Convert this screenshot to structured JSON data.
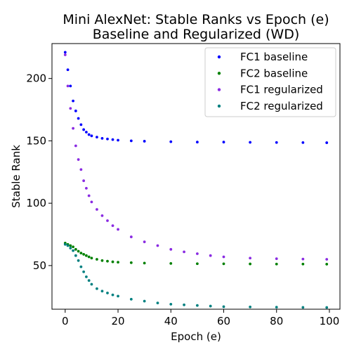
{
  "chart_data": {
    "type": "scatter",
    "title": "Mini AlexNet: Stable Ranks vs Epoch (e)",
    "subtitle": "Baseline and Regularized (WD)",
    "xlabel": "Epoch (e)",
    "ylabel": "Stable Rank",
    "xlim": [
      -5,
      104
    ],
    "ylim": [
      15,
      228
    ],
    "xticks": [
      0,
      20,
      40,
      60,
      80,
      100
    ],
    "yticks": [
      50,
      100,
      150,
      200
    ],
    "grid": false,
    "legend_position": "top-right",
    "series": [
      {
        "name": "FC1 baseline",
        "color": "#0000ff",
        "x": [
          0,
          1,
          2,
          3,
          4,
          5,
          6,
          7,
          8,
          9,
          10,
          12,
          14,
          16,
          18,
          20,
          25,
          30,
          40,
          50,
          60,
          70,
          80,
          90,
          99
        ],
        "y": [
          221,
          207,
          194,
          182,
          174,
          168,
          163,
          159,
          157,
          155,
          154,
          153,
          152,
          151.5,
          151,
          150.5,
          150,
          149.7,
          149.3,
          149,
          149,
          148.8,
          148.7,
          148.6,
          148.5
        ]
      },
      {
        "name": "FC2 baseline",
        "color": "#008000",
        "x": [
          0,
          1,
          2,
          3,
          4,
          5,
          6,
          7,
          8,
          9,
          10,
          12,
          14,
          16,
          18,
          20,
          25,
          30,
          40,
          50,
          60,
          70,
          80,
          90,
          99
        ],
        "y": [
          68,
          67,
          66,
          65,
          63,
          61.5,
          60,
          59,
          58,
          57,
          56,
          55,
          54,
          53.5,
          53,
          52.7,
          52.3,
          52,
          51.7,
          51.5,
          51.4,
          51.3,
          51.2,
          51.2,
          51.1
        ]
      },
      {
        "name": "FC1 regularized",
        "color": "#8a2be2",
        "x": [
          0,
          1,
          2,
          3,
          4,
          5,
          6,
          7,
          8,
          9,
          10,
          12,
          14,
          16,
          18,
          20,
          25,
          30,
          35,
          40,
          45,
          50,
          55,
          60,
          70,
          80,
          90,
          99
        ],
        "y": [
          219,
          194,
          176,
          160,
          146,
          135,
          127,
          118,
          112,
          106,
          101,
          95,
          90,
          86,
          82,
          79,
          73,
          69,
          66,
          63,
          61,
          59.5,
          58,
          57,
          56,
          55.5,
          55.2,
          55
        ]
      },
      {
        "name": "FC2 regularized",
        "color": "#008080",
        "x": [
          0,
          1,
          2,
          3,
          4,
          5,
          6,
          7,
          8,
          9,
          10,
          12,
          14,
          16,
          18,
          20,
          25,
          30,
          35,
          40,
          45,
          50,
          55,
          60,
          70,
          80,
          90,
          99
        ],
        "y": [
          67,
          66,
          64,
          62,
          58,
          54,
          49,
          45,
          41,
          38,
          35,
          31.5,
          29.5,
          28,
          26.5,
          25.5,
          23,
          21.5,
          20,
          19,
          18.5,
          18,
          17.5,
          17,
          16.8,
          16.6,
          16.5,
          16.4
        ]
      }
    ]
  }
}
